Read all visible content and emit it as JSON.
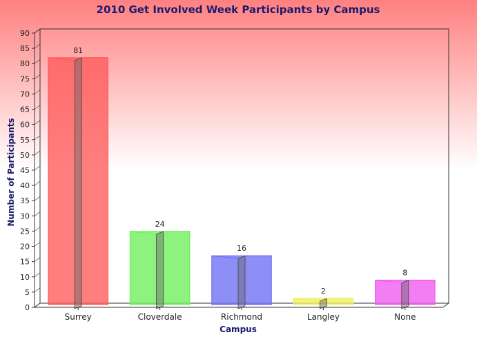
{
  "chart_data": {
    "type": "bar",
    "title": "2010 Get Involved Week Participants by Campus",
    "xlabel": "Campus",
    "ylabel": "Number of Participants",
    "categories": [
      "Surrey",
      "Cloverdale",
      "Richmond",
      "Langley",
      "None"
    ],
    "values": [
      81,
      24,
      16,
      2,
      8
    ],
    "colors": [
      "#ff5a5a",
      "#6ef05a",
      "#6e6ef5",
      "#f0f05a",
      "#f05af0"
    ],
    "ylim": [
      0,
      90
    ],
    "yticks": [
      0,
      5,
      10,
      15,
      20,
      25,
      30,
      35,
      40,
      45,
      50,
      55,
      60,
      65,
      70,
      75,
      80,
      85,
      90
    ],
    "grid": false,
    "legend": "none",
    "background": {
      "top": "#ff8080",
      "bottom": "#ffffff"
    }
  }
}
